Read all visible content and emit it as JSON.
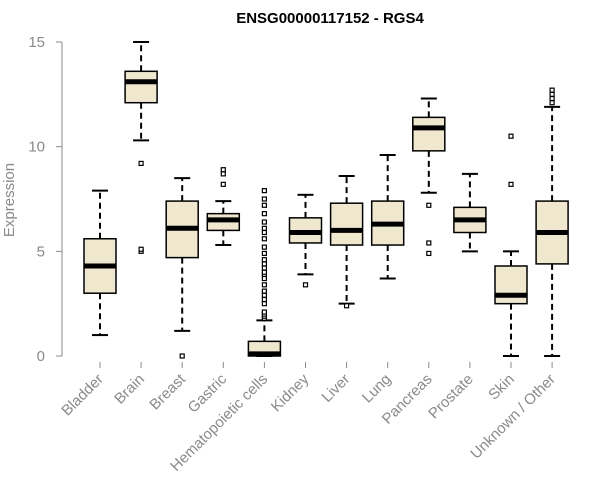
{
  "chart_data": {
    "type": "boxplot",
    "title": "ENSG00000117152 - RGS4",
    "xlabel": "",
    "ylabel": "Expression",
    "ylim": [
      0,
      15
    ],
    "yticks": [
      0,
      5,
      10,
      15
    ],
    "box_fill": "#efe8cf",
    "categories": [
      "Bladder",
      "Brain",
      "Breast",
      "Gastric",
      "Hematopoietic cells",
      "Kidney",
      "Liver",
      "Lung",
      "Pancreas",
      "Prostate",
      "Skin",
      "Unknown / Other"
    ],
    "boxes": [
      {
        "whisker_low": 1.0,
        "q1": 3.0,
        "median": 4.3,
        "q3": 5.6,
        "whisker_high": 7.9,
        "outliers": []
      },
      {
        "whisker_low": 10.3,
        "q1": 12.1,
        "median": 13.1,
        "q3": 13.6,
        "whisker_high": 15.0,
        "outliers": [
          9.2,
          5.0,
          5.1
        ]
      },
      {
        "whisker_low": 1.2,
        "q1": 4.7,
        "median": 6.1,
        "q3": 7.4,
        "whisker_high": 8.5,
        "outliers": [
          0.0
        ]
      },
      {
        "whisker_low": 5.3,
        "q1": 6.0,
        "median": 6.5,
        "q3": 6.8,
        "whisker_high": 7.4,
        "outliers": [
          8.2,
          8.7,
          8.9
        ]
      },
      {
        "whisker_low": 0.0,
        "q1": 0.0,
        "median": 0.1,
        "q3": 0.7,
        "whisker_high": 1.7,
        "outliers": [
          1.8,
          1.9,
          2.0,
          2.1,
          2.5,
          2.7,
          2.9,
          3.1,
          3.4,
          3.7,
          3.9,
          4.0,
          4.2,
          4.4,
          4.6,
          4.9,
          5.2,
          5.6,
          5.9,
          6.1,
          6.4,
          6.8,
          7.2,
          7.5,
          7.9
        ]
      },
      {
        "whisker_low": 3.9,
        "q1": 5.4,
        "median": 5.9,
        "q3": 6.6,
        "whisker_high": 7.7,
        "outliers": [
          3.4
        ]
      },
      {
        "whisker_low": 2.5,
        "q1": 5.3,
        "median": 6.0,
        "q3": 7.3,
        "whisker_high": 8.6,
        "outliers": [
          2.4
        ]
      },
      {
        "whisker_low": 3.7,
        "q1": 5.3,
        "median": 6.3,
        "q3": 7.4,
        "whisker_high": 9.6,
        "outliers": []
      },
      {
        "whisker_low": 7.8,
        "q1": 9.8,
        "median": 10.9,
        "q3": 11.4,
        "whisker_high": 12.3,
        "outliers": [
          7.2,
          5.4,
          4.9
        ]
      },
      {
        "whisker_low": 5.0,
        "q1": 5.9,
        "median": 6.5,
        "q3": 7.1,
        "whisker_high": 8.7,
        "outliers": []
      },
      {
        "whisker_low": 0.0,
        "q1": 2.5,
        "median": 2.9,
        "q3": 4.3,
        "whisker_high": 5.0,
        "outliers": [
          8.2,
          10.5
        ]
      },
      {
        "whisker_low": 0.0,
        "q1": 4.4,
        "median": 5.9,
        "q3": 7.4,
        "whisker_high": 11.9,
        "outliers": [
          12.1,
          12.3,
          12.5,
          12.7
        ]
      }
    ]
  }
}
